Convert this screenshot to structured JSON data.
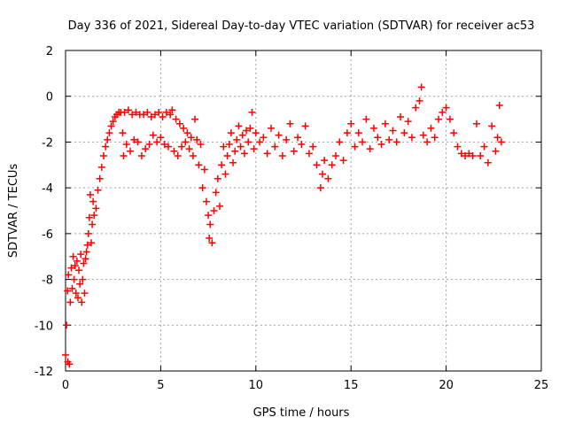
{
  "chart_data": {
    "type": "scatter",
    "title": "Day 336 of 2021, Sidereal Day-to-day VTEC variation (SDTVAR) for receiver ac53",
    "xlabel": "GPS time / hours",
    "ylabel": "SDTVAR / TECUs",
    "xlim": [
      0,
      25
    ],
    "ylim": [
      -12,
      2
    ],
    "xticks": [
      0,
      5,
      10,
      15,
      20,
      25
    ],
    "yticks": [
      -12,
      -10,
      -8,
      -6,
      -4,
      -2,
      0,
      2
    ],
    "grid": true,
    "marker": "+",
    "color": "#ff0000",
    "series": [
      {
        "name": "SDTVAR",
        "points": [
          [
            0.0,
            -11.3
          ],
          [
            0.05,
            -10.0
          ],
          [
            0.1,
            -8.5
          ],
          [
            0.12,
            -11.6
          ],
          [
            0.15,
            -7.8
          ],
          [
            0.2,
            -11.7
          ],
          [
            0.25,
            -9.0
          ],
          [
            0.3,
            -7.5
          ],
          [
            0.35,
            -8.4
          ],
          [
            0.4,
            -7.0
          ],
          [
            0.45,
            -8.0
          ],
          [
            0.5,
            -7.4
          ],
          [
            0.55,
            -8.6
          ],
          [
            0.6,
            -7.2
          ],
          [
            0.65,
            -8.8
          ],
          [
            0.7,
            -7.6
          ],
          [
            0.75,
            -8.2
          ],
          [
            0.8,
            -6.9
          ],
          [
            0.85,
            -9.0
          ],
          [
            0.9,
            -8.0
          ],
          [
            0.95,
            -7.3
          ],
          [
            1.0,
            -8.6
          ],
          [
            1.05,
            -7.1
          ],
          [
            1.1,
            -6.8
          ],
          [
            1.15,
            -6.5
          ],
          [
            1.2,
            -6.0
          ],
          [
            1.25,
            -5.3
          ],
          [
            1.3,
            -4.3
          ],
          [
            1.35,
            -6.4
          ],
          [
            1.4,
            -5.6
          ],
          [
            1.45,
            -4.6
          ],
          [
            1.5,
            -5.2
          ],
          [
            1.6,
            -4.9
          ],
          [
            1.7,
            -4.1
          ],
          [
            1.8,
            -3.6
          ],
          [
            1.9,
            -3.1
          ],
          [
            2.0,
            -2.6
          ],
          [
            2.1,
            -2.2
          ],
          [
            2.2,
            -1.9
          ],
          [
            2.3,
            -1.6
          ],
          [
            2.4,
            -1.3
          ],
          [
            2.5,
            -1.1
          ],
          [
            2.6,
            -0.9
          ],
          [
            2.7,
            -0.8
          ],
          [
            2.8,
            -0.7
          ],
          [
            2.9,
            -0.7
          ],
          [
            3.0,
            -1.6
          ],
          [
            3.05,
            -2.6
          ],
          [
            3.1,
            -0.7
          ],
          [
            3.2,
            -2.1
          ],
          [
            3.3,
            -0.6
          ],
          [
            3.4,
            -2.4
          ],
          [
            3.5,
            -0.8
          ],
          [
            3.6,
            -1.9
          ],
          [
            3.7,
            -0.7
          ],
          [
            3.8,
            -2.0
          ],
          [
            3.9,
            -0.8
          ],
          [
            4.0,
            -2.6
          ],
          [
            4.1,
            -0.8
          ],
          [
            4.2,
            -2.3
          ],
          [
            4.3,
            -0.7
          ],
          [
            4.4,
            -2.1
          ],
          [
            4.5,
            -0.9
          ],
          [
            4.6,
            -1.7
          ],
          [
            4.7,
            -0.8
          ],
          [
            4.8,
            -2.0
          ],
          [
            4.9,
            -0.7
          ],
          [
            5.0,
            -1.8
          ],
          [
            5.1,
            -0.9
          ],
          [
            5.2,
            -2.1
          ],
          [
            5.3,
            -0.7
          ],
          [
            5.4,
            -2.2
          ],
          [
            5.5,
            -0.8
          ],
          [
            5.6,
            -0.6
          ],
          [
            5.7,
            -2.4
          ],
          [
            5.8,
            -1.0
          ],
          [
            5.9,
            -2.6
          ],
          [
            6.0,
            -1.2
          ],
          [
            6.1,
            -2.2
          ],
          [
            6.2,
            -1.4
          ],
          [
            6.3,
            -2.0
          ],
          [
            6.4,
            -1.6
          ],
          [
            6.5,
            -2.3
          ],
          [
            6.6,
            -1.8
          ],
          [
            6.7,
            -2.6
          ],
          [
            6.8,
            -1.0
          ],
          [
            6.9,
            -1.9
          ],
          [
            7.0,
            -3.0
          ],
          [
            7.1,
            -2.1
          ],
          [
            7.2,
            -4.0
          ],
          [
            7.3,
            -3.2
          ],
          [
            7.4,
            -4.6
          ],
          [
            7.5,
            -5.2
          ],
          [
            7.55,
            -6.2
          ],
          [
            7.6,
            -5.6
          ],
          [
            7.7,
            -6.4
          ],
          [
            7.8,
            -5.0
          ],
          [
            7.9,
            -4.2
          ],
          [
            8.0,
            -3.6
          ],
          [
            8.1,
            -4.8
          ],
          [
            8.2,
            -3.0
          ],
          [
            8.3,
            -2.2
          ],
          [
            8.4,
            -3.4
          ],
          [
            8.5,
            -2.6
          ],
          [
            8.6,
            -2.1
          ],
          [
            8.7,
            -1.6
          ],
          [
            8.8,
            -2.9
          ],
          [
            8.9,
            -2.4
          ],
          [
            9.0,
            -1.9
          ],
          [
            9.1,
            -1.3
          ],
          [
            9.2,
            -2.2
          ],
          [
            9.3,
            -1.7
          ],
          [
            9.4,
            -2.5
          ],
          [
            9.5,
            -1.5
          ],
          [
            9.6,
            -2.0
          ],
          [
            9.7,
            -1.4
          ],
          [
            9.8,
            -0.7
          ],
          [
            9.9,
            -2.3
          ],
          [
            10.0,
            -1.6
          ],
          [
            10.2,
            -2.0
          ],
          [
            10.4,
            -1.8
          ],
          [
            10.6,
            -2.5
          ],
          [
            10.8,
            -1.4
          ],
          [
            11.0,
            -2.2
          ],
          [
            11.2,
            -1.7
          ],
          [
            11.4,
            -2.6
          ],
          [
            11.6,
            -1.9
          ],
          [
            11.8,
            -1.2
          ],
          [
            12.0,
            -2.4
          ],
          [
            12.2,
            -1.8
          ],
          [
            12.4,
            -2.1
          ],
          [
            12.6,
            -1.3
          ],
          [
            12.8,
            -2.5
          ],
          [
            13.0,
            -2.2
          ],
          [
            13.2,
            -3.0
          ],
          [
            13.4,
            -4.0
          ],
          [
            13.5,
            -3.4
          ],
          [
            13.6,
            -2.8
          ],
          [
            13.8,
            -3.6
          ],
          [
            14.0,
            -3.0
          ],
          [
            14.2,
            -2.6
          ],
          [
            14.4,
            -2.0
          ],
          [
            14.6,
            -2.8
          ],
          [
            14.8,
            -1.6
          ],
          [
            15.0,
            -1.2
          ],
          [
            15.2,
            -2.2
          ],
          [
            15.4,
            -1.6
          ],
          [
            15.6,
            -2.0
          ],
          [
            15.8,
            -1.0
          ],
          [
            16.0,
            -2.3
          ],
          [
            16.2,
            -1.4
          ],
          [
            16.4,
            -1.8
          ],
          [
            16.6,
            -2.1
          ],
          [
            16.8,
            -1.2
          ],
          [
            17.0,
            -1.9
          ],
          [
            17.2,
            -1.5
          ],
          [
            17.4,
            -2.0
          ],
          [
            17.6,
            -0.9
          ],
          [
            17.8,
            -1.6
          ],
          [
            18.0,
            -1.1
          ],
          [
            18.2,
            -1.8
          ],
          [
            18.4,
            -0.5
          ],
          [
            18.6,
            -0.2
          ],
          [
            18.7,
            0.4
          ],
          [
            18.8,
            -1.7
          ],
          [
            19.0,
            -2.0
          ],
          [
            19.2,
            -1.4
          ],
          [
            19.4,
            -1.8
          ],
          [
            19.6,
            -1.0
          ],
          [
            19.8,
            -0.7
          ],
          [
            20.0,
            -0.5
          ],
          [
            20.2,
            -1.0
          ],
          [
            20.4,
            -1.6
          ],
          [
            20.6,
            -2.2
          ],
          [
            20.8,
            -2.5
          ],
          [
            21.0,
            -2.6
          ],
          [
            21.2,
            -2.5
          ],
          [
            21.4,
            -2.6
          ],
          [
            21.6,
            -1.2
          ],
          [
            21.8,
            -2.6
          ],
          [
            22.0,
            -2.2
          ],
          [
            22.2,
            -2.9
          ],
          [
            22.4,
            -1.3
          ],
          [
            22.6,
            -2.4
          ],
          [
            22.7,
            -1.8
          ],
          [
            22.8,
            -0.4
          ],
          [
            22.9,
            -2.0
          ]
        ]
      }
    ]
  }
}
